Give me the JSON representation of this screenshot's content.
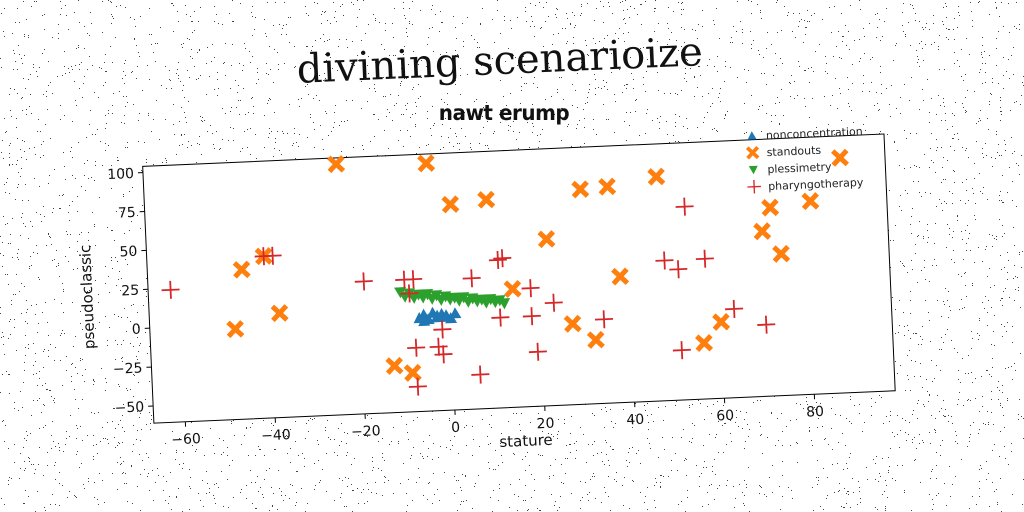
{
  "title": "divining scenarioize",
  "chart_data": {
    "type": "scatter",
    "title": "nawt erump",
    "xlabel": "stature",
    "ylabel": "pseudoclassic",
    "xlim": [
      -67,
      98
    ],
    "ylim": [
      -61,
      104
    ],
    "xticks": [
      -60,
      -40,
      -20,
      0,
      20,
      40,
      60,
      80
    ],
    "yticks": [
      -50,
      -25,
      0,
      25,
      50,
      75,
      100
    ],
    "xtick_labels": [
      "−60",
      "−40",
      "−20",
      "0",
      "20",
      "40",
      "60",
      "80"
    ],
    "ytick_labels": [
      "−50",
      "−25",
      "0",
      "25",
      "50",
      "75",
      "100"
    ],
    "legend_position": "top-right",
    "rotation_deg": -2.5,
    "series": [
      {
        "name": "nonconcentration",
        "marker": "triangle-up",
        "color": "#1f77b4",
        "points": [
          [
            -7,
            -1
          ],
          [
            -6,
            1
          ],
          [
            -5,
            -2
          ],
          [
            -4,
            2
          ],
          [
            -3,
            -1
          ],
          [
            -2,
            1
          ],
          [
            -1,
            0
          ],
          [
            0,
            -2
          ],
          [
            1,
            1
          ],
          [
            -6,
            -3
          ],
          [
            -3,
            0
          ],
          [
            -1,
            -1
          ]
        ]
      },
      {
        "name": "standouts",
        "marker": "x-thick",
        "color": "#ff7f0e",
        "points": [
          [
            -24,
            100
          ],
          [
            -4,
            98
          ],
          [
            -46,
            35
          ],
          [
            -41,
            43
          ],
          [
            -38,
            6
          ],
          [
            -48,
            -3
          ],
          [
            1,
            71
          ],
          [
            9,
            73
          ],
          [
            22,
            46
          ],
          [
            30,
            77
          ],
          [
            36,
            78
          ],
          [
            47,
            83
          ],
          [
            14,
            15
          ],
          [
            38,
            20
          ],
          [
            27,
            -9
          ],
          [
            32,
            -20
          ],
          [
            56,
            -25
          ],
          [
            60,
            -12
          ],
          [
            70,
            45
          ],
          [
            72,
            60
          ],
          [
            74,
            30
          ],
          [
            81,
            63
          ],
          [
            88,
            90
          ],
          [
            -13,
            -31
          ],
          [
            -9,
            -36
          ]
        ]
      },
      {
        "name": "plessimetry",
        "marker": "triangle-down",
        "color": "#2ca02c",
        "points": [
          [
            -11,
            16
          ],
          [
            -9,
            15
          ],
          [
            -7,
            14
          ],
          [
            -5,
            14
          ],
          [
            -3,
            13
          ],
          [
            -1,
            12
          ],
          [
            1,
            11
          ],
          [
            3,
            11
          ],
          [
            5,
            10
          ],
          [
            7,
            9
          ],
          [
            9,
            9
          ],
          [
            11,
            8
          ],
          [
            -10,
            13
          ],
          [
            -8,
            12
          ],
          [
            -6,
            12
          ],
          [
            -4,
            11
          ],
          [
            -2,
            10
          ],
          [
            0,
            10
          ],
          [
            2,
            9
          ],
          [
            4,
            8
          ],
          [
            6,
            8
          ],
          [
            8,
            7
          ],
          [
            10,
            7
          ],
          [
            12,
            6
          ]
        ]
      },
      {
        "name": "pharyngotherapy",
        "marker": "plus",
        "color": "#d62728",
        "points": [
          [
            -62,
            24
          ],
          [
            -41,
            43
          ],
          [
            -39,
            43
          ],
          [
            -19,
            24
          ],
          [
            -10,
            24
          ],
          [
            -8,
            24
          ],
          [
            -9,
            15
          ],
          [
            5,
            23
          ],
          [
            11,
            34
          ],
          [
            12,
            35
          ],
          [
            18,
            15
          ],
          [
            23,
            5
          ],
          [
            11,
            -3
          ],
          [
            18,
            -3
          ],
          [
            -2,
            -9
          ],
          [
            -8,
            -20
          ],
          [
            -3,
            -20
          ],
          [
            -2,
            -25
          ],
          [
            6,
            -39
          ],
          [
            -8,
            -45
          ],
          [
            19,
            -26
          ],
          [
            34,
            -7
          ],
          [
            48,
            29
          ],
          [
            51,
            23
          ],
          [
            53,
            63
          ],
          [
            57,
            29
          ],
          [
            51,
            -29
          ],
          [
            63,
            -4
          ],
          [
            70,
            -15
          ]
        ]
      }
    ]
  }
}
